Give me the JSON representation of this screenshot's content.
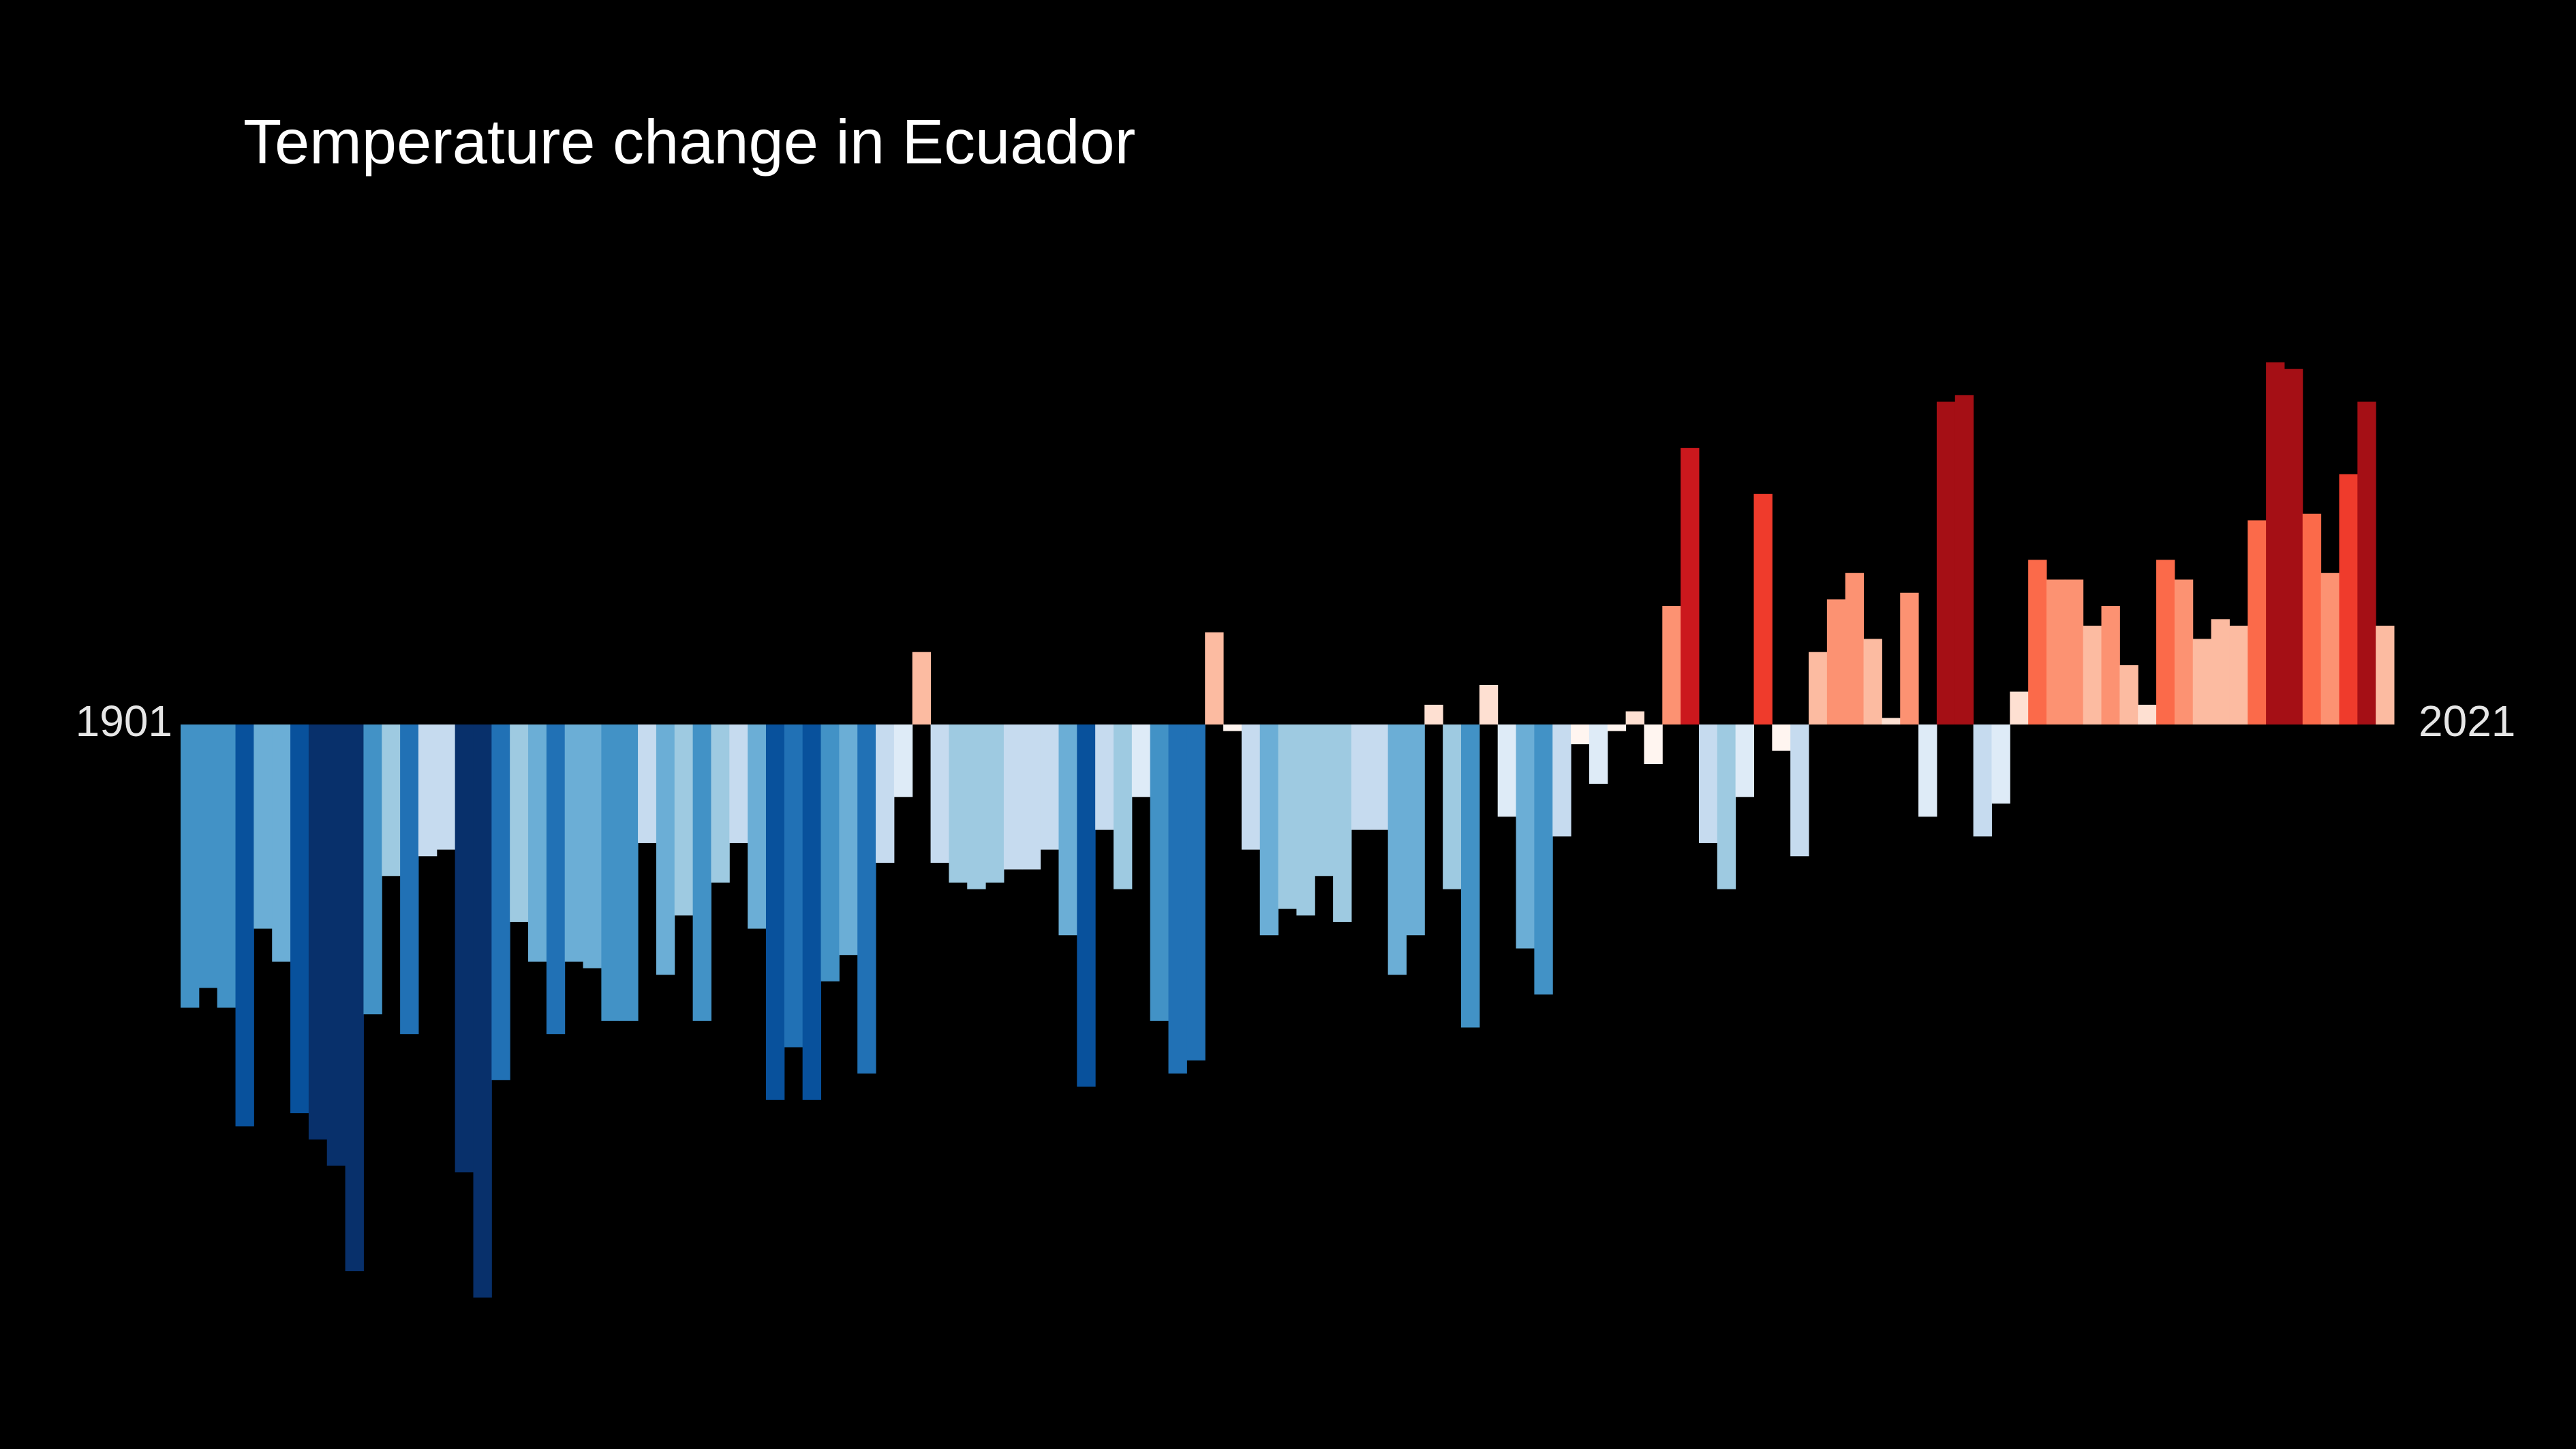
{
  "chart_data": {
    "type": "bar",
    "title": "Temperature change in Ecuador",
    "categories": [
      "1901",
      null,
      null,
      null,
      null,
      null,
      null,
      null,
      null,
      null,
      null,
      null,
      null,
      null,
      null,
      null,
      null,
      null,
      null,
      null,
      null,
      null,
      null,
      null,
      null,
      null,
      null,
      null,
      null,
      null,
      null,
      null,
      null,
      null,
      null,
      null,
      null,
      null,
      null,
      null,
      null,
      null,
      null,
      null,
      null,
      null,
      null,
      null,
      null,
      null,
      null,
      null,
      null,
      null,
      null,
      null,
      null,
      null,
      null,
      null,
      null,
      null,
      null,
      null,
      null,
      null,
      null,
      null,
      null,
      null,
      null,
      null,
      null,
      null,
      null,
      null,
      null,
      null,
      null,
      null,
      null,
      null,
      null,
      null,
      null,
      null,
      null,
      null,
      null,
      null,
      null,
      null,
      null,
      null,
      null,
      null,
      null,
      null,
      null,
      null,
      null,
      null,
      null,
      null,
      null,
      null,
      null,
      null,
      null,
      null,
      null,
      null,
      null,
      null,
      null,
      null,
      null,
      null,
      null,
      null,
      "2021"
    ],
    "values": [
      -0.43,
      -0.4,
      -0.43,
      -0.61,
      -0.31,
      -0.36,
      -0.59,
      -0.63,
      -0.67,
      -0.83,
      -0.44,
      -0.23,
      -0.47,
      -0.2,
      -0.19,
      -0.68,
      -0.87,
      -0.54,
      -0.3,
      -0.36,
      -0.47,
      -0.36,
      -0.37,
      -0.45,
      -0.45,
      -0.18,
      -0.38,
      -0.29,
      -0.45,
      -0.24,
      -0.18,
      -0.31,
      -0.57,
      -0.49,
      -0.57,
      -0.39,
      -0.35,
      -0.53,
      -0.21,
      -0.11,
      0.11,
      -0.21,
      -0.24,
      -0.25,
      -0.24,
      -0.22,
      -0.22,
      -0.19,
      -0.32,
      -0.55,
      -0.16,
      -0.25,
      -0.11,
      -0.45,
      -0.53,
      -0.51,
      0.14,
      -0.01,
      -0.19,
      -0.32,
      -0.28,
      -0.29,
      -0.23,
      -0.3,
      -0.16,
      -0.16,
      -0.38,
      -0.32,
      0.03,
      -0.25,
      -0.46,
      0.06,
      -0.14,
      -0.34,
      -0.41,
      -0.17,
      -0.03,
      -0.09,
      -0.01,
      0.02,
      -0.06,
      0.18,
      0.42,
      -0.18,
      -0.25,
      -0.11,
      0.35,
      -0.04,
      -0.2,
      0.11,
      0.19,
      0.23,
      0.13,
      0.01,
      0.2,
      -0.14,
      0.49,
      0.5,
      -0.17,
      -0.12,
      0.05,
      0.25,
      0.22,
      0.22,
      0.15,
      0.18,
      0.09,
      0.03,
      0.25,
      0.22,
      0.13,
      0.16,
      0.15,
      0.31,
      0.55,
      0.54,
      0.32,
      0.23,
      0.38,
      0.49,
      0.15
    ],
    "colors": [
      "#08306b",
      "#08519c",
      "#2171b5",
      "#4292c6",
      "#6baed6",
      "#9ecae1",
      "#c6dbef",
      "#deebf7",
      "#fff5f0",
      "#fee0d2",
      "#fcbba1",
      "#fc9272",
      "#fb6a4a",
      "#ef3b2c",
      "#cb181d",
      "#a50f15"
    ],
    "clim": [
      -0.7,
      0.56
    ],
    "ylim": [
      -1.1,
      1.1
    ]
  }
}
